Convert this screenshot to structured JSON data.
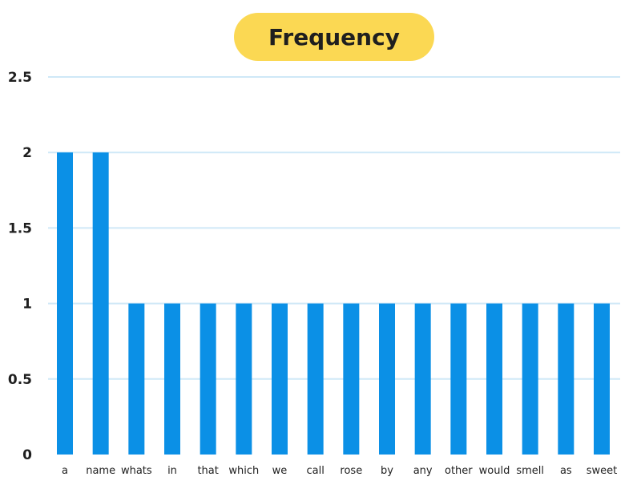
{
  "colors": {
    "title_background": "#fbd853",
    "bar": "#0b90e6",
    "gridline": "#cfe8f7"
  },
  "chart_data": {
    "type": "bar",
    "title": "Frequency",
    "xlabel": "",
    "ylabel": "",
    "categories": [
      "a",
      "name",
      "whats",
      "in",
      "that",
      "which",
      "we",
      "call",
      "rose",
      "by",
      "any",
      "other",
      "would",
      "smell",
      "as",
      "sweet"
    ],
    "values": [
      2,
      2,
      1,
      1,
      1,
      1,
      1,
      1,
      1,
      1,
      1,
      1,
      1,
      1,
      1,
      1
    ],
    "ylim": [
      0,
      2.5
    ],
    "yticks": [
      "0",
      "0.5",
      "1",
      "1.5",
      "2",
      "2.5"
    ],
    "grid": true,
    "legend": "none"
  }
}
